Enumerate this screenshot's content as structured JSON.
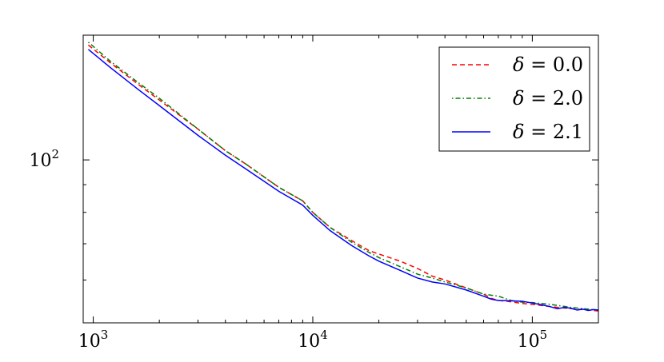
{
  "chart_data": {
    "type": "line",
    "title": "",
    "xlabel": "",
    "ylabel": "",
    "x_scale": "log",
    "y_scale": "log",
    "xlim": [
      900,
      200000
    ],
    "ylim": [
      50,
      170
    ],
    "grid": false,
    "legend_position": "top-right",
    "x_ticks": [
      {
        "value": 1000,
        "base": "10",
        "exp": "3"
      },
      {
        "value": 10000,
        "base": "10",
        "exp": "4"
      },
      {
        "value": 100000,
        "base": "10",
        "exp": "5"
      }
    ],
    "y_ticks": [
      {
        "value": 100,
        "base": "10",
        "exp": "2"
      }
    ],
    "series": [
      {
        "name": "δ = 0.0",
        "name_parts": {
          "symbol": "δ",
          "rest": " = 0.0"
        },
        "color": "#ff0000",
        "dash": "6,4",
        "x": [
          950,
          1200,
          1600,
          2000,
          3000,
          4000,
          5000,
          7000,
          9000,
          10000,
          12000,
          15000,
          18000,
          20000,
          25000,
          30000,
          35000,
          40000,
          50000,
          60000,
          65000,
          70000,
          80000,
          90000,
          100000,
          120000,
          150000,
          180000,
          200000
        ],
        "y": [
          163,
          151,
          138,
          129,
          114,
          104,
          98,
          89,
          84,
          80,
          75,
          71,
          68,
          67,
          65,
          63,
          61,
          60,
          58,
          56.5,
          55.5,
          55,
          54.7,
          54.3,
          54.1,
          53.6,
          53.1,
          52.8,
          52.6
        ]
      },
      {
        "name": "δ = 2.0",
        "name_parts": {
          "symbol": "δ",
          "rest": " = 2.0"
        },
        "color": "#008000",
        "dash": "1.5,3,6,3",
        "x": [
          950,
          1200,
          1600,
          2000,
          3000,
          4000,
          5000,
          7000,
          9000,
          10000,
          12000,
          15000,
          18000,
          20000,
          25000,
          30000,
          35000,
          40000,
          50000,
          60000,
          70000,
          80000,
          90000,
          100000,
          120000,
          150000,
          180000,
          200000
        ],
        "y": [
          165,
          152,
          139,
          130,
          114,
          104,
          98,
          89,
          84,
          80,
          75,
          70.5,
          67.5,
          66,
          63.5,
          61.5,
          60.5,
          59.5,
          58,
          56.5,
          56,
          55,
          54.6,
          54.5,
          54.1,
          53.4,
          53,
          52.8
        ]
      },
      {
        "name": "δ = 2.1",
        "name_parts": {
          "symbol": "δ",
          "rest": " = 2.1"
        },
        "color": "#0000ff",
        "dash": "",
        "x": [
          950,
          1200,
          1600,
          2000,
          3000,
          4000,
          5000,
          7000,
          9000,
          10000,
          12000,
          15000,
          18000,
          20000,
          25000,
          30000,
          35000,
          40000,
          50000,
          60000,
          65000,
          70000,
          80000,
          90000,
          100000,
          110000,
          120000,
          130000,
          140000,
          150000,
          160000,
          170000,
          180000,
          190000,
          200000
        ],
        "y": [
          160,
          148,
          135,
          126,
          111,
          102,
          96,
          87.5,
          82.5,
          79,
          74,
          69.5,
          66.5,
          65,
          62.5,
          60.5,
          59.5,
          59,
          57.5,
          56,
          55.3,
          55,
          54.9,
          54.8,
          54.4,
          54,
          53.6,
          53.1,
          53.4,
          53.2,
          52.8,
          53,
          52.7,
          52.9,
          52.8
        ]
      }
    ]
  }
}
